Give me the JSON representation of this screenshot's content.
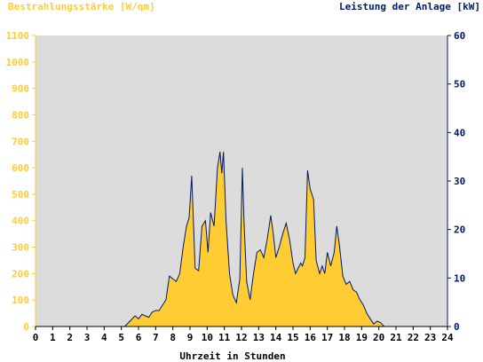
{
  "chart_data": {
    "type": "area",
    "left_axis_title": "Bestrahlungsstärke [W/qm]",
    "right_axis_title": "Leistung der Anlage [kW]",
    "xlabel": "Uhrzeit in Stunden",
    "xlim": [
      0,
      24
    ],
    "ylim_left": [
      0,
      1100
    ],
    "ylim_right": [
      0,
      60
    ],
    "x_ticks": [
      "0",
      "1",
      "2",
      "3",
      "4",
      "5",
      "6",
      "7",
      "8",
      "9",
      "10",
      "11",
      "12",
      "13",
      "14",
      "15",
      "16",
      "17",
      "18",
      "19",
      "20",
      "21",
      "22",
      "23",
      "24"
    ],
    "y_left_ticks": [
      "0",
      "100",
      "200",
      "300",
      "400",
      "500",
      "600",
      "700",
      "800",
      "900",
      "1000",
      "1100"
    ],
    "y_right_ticks": [
      "0",
      "10",
      "20",
      "30",
      "40",
      "50",
      "60"
    ],
    "grid": false,
    "colors": {
      "plot_background": "#dcdcdc",
      "irradiance_fill": "#ffcc33",
      "power_line": "#001a66",
      "left_axis": "#ffcc33",
      "right_axis": "#001a66"
    },
    "series": [
      {
        "axis": "left",
        "x": [
          0,
          5.2,
          5.5,
          5.8,
          6.0,
          6.2,
          6.4,
          6.6,
          6.8,
          7.0,
          7.2,
          7.4,
          7.6,
          7.8,
          8.0,
          8.2,
          8.4,
          8.6,
          8.8,
          8.95,
          9.1,
          9.3,
          9.5,
          9.7,
          9.9,
          10.05,
          10.2,
          10.4,
          10.6,
          10.75,
          10.85,
          10.95,
          11.1,
          11.3,
          11.5,
          11.7,
          11.9,
          12.05,
          12.15,
          12.3,
          12.5,
          12.7,
          12.9,
          13.1,
          13.3,
          13.5,
          13.7,
          13.85,
          14.0,
          14.2,
          14.4,
          14.6,
          14.8,
          15.0,
          15.15,
          15.3,
          15.45,
          15.55,
          15.7,
          15.85,
          16.0,
          16.2,
          16.35,
          16.55,
          16.7,
          16.85,
          17.0,
          17.2,
          17.4,
          17.55,
          17.7,
          17.9,
          18.1,
          18.3,
          18.5,
          18.7,
          18.9,
          19.1,
          19.3,
          19.5,
          19.7,
          19.9,
          20.1,
          20.3,
          20.5,
          20.7,
          24
        ],
        "y": [
          0,
          0,
          20,
          40,
          30,
          45,
          40,
          35,
          55,
          60,
          60,
          80,
          100,
          190,
          180,
          170,
          200,
          300,
          380,
          410,
          570,
          220,
          210,
          380,
          400,
          280,
          430,
          380,
          600,
          680,
          580,
          680,
          400,
          200,
          120,
          90,
          180,
          600,
          390,
          170,
          100,
          200,
          280,
          290,
          260,
          330,
          420,
          350,
          260,
          300,
          350,
          390,
          330,
          240,
          200,
          220,
          240,
          230,
          260,
          590,
          520,
          480,
          250,
          200,
          230,
          200,
          280,
          230,
          280,
          380,
          310,
          190,
          160,
          170,
          140,
          130,
          100,
          80,
          50,
          30,
          10,
          20,
          15,
          0,
          0,
          0,
          0
        ]
      },
      {
        "axis": "right",
        "x": [
          0,
          5.2,
          5.5,
          5.8,
          6.0,
          6.2,
          6.4,
          6.6,
          6.8,
          7.0,
          7.2,
          7.4,
          7.6,
          7.8,
          8.0,
          8.2,
          8.4,
          8.6,
          8.8,
          8.95,
          9.1,
          9.3,
          9.5,
          9.7,
          9.9,
          10.05,
          10.2,
          10.4,
          10.6,
          10.75,
          10.85,
          10.95,
          11.1,
          11.3,
          11.5,
          11.7,
          11.9,
          12.05,
          12.15,
          12.3,
          12.5,
          12.7,
          12.9,
          13.1,
          13.3,
          13.5,
          13.7,
          13.85,
          14.0,
          14.2,
          14.4,
          14.6,
          14.8,
          15.0,
          15.15,
          15.3,
          15.45,
          15.55,
          15.7,
          15.85,
          16.0,
          16.2,
          16.35,
          16.55,
          16.7,
          16.85,
          17.0,
          17.2,
          17.4,
          17.55,
          17.7,
          17.9,
          18.1,
          18.3,
          18.5,
          18.7,
          18.9,
          19.1,
          19.3,
          19.5,
          19.7,
          19.9,
          20.1,
          20.3,
          20.5,
          20.7,
          24
        ],
        "y": [
          0,
          0,
          1.1,
          2.2,
          1.6,
          2.5,
          2.2,
          1.9,
          3.0,
          3.3,
          3.3,
          4.4,
          5.5,
          10.4,
          9.8,
          9.3,
          10.9,
          16.4,
          20.7,
          22.4,
          31.1,
          12.0,
          11.5,
          20.7,
          21.8,
          15.3,
          23.5,
          20.7,
          32.7,
          36.0,
          31.6,
          36.0,
          21.8,
          10.9,
          6.5,
          4.9,
          9.8,
          32.7,
          21.3,
          9.3,
          5.5,
          10.9,
          15.3,
          15.8,
          14.2,
          18.0,
          22.9,
          19.1,
          14.2,
          16.4,
          19.1,
          21.3,
          18.0,
          13.1,
          10.9,
          12.0,
          13.1,
          12.5,
          14.2,
          32.2,
          28.4,
          26.2,
          13.6,
          10.9,
          12.5,
          10.9,
          15.3,
          12.5,
          15.3,
          20.7,
          16.9,
          10.4,
          8.7,
          9.3,
          7.6,
          7.1,
          5.5,
          4.4,
          2.7,
          1.6,
          0.5,
          1.1,
          0.8,
          0,
          0,
          0,
          0
        ]
      }
    ]
  }
}
